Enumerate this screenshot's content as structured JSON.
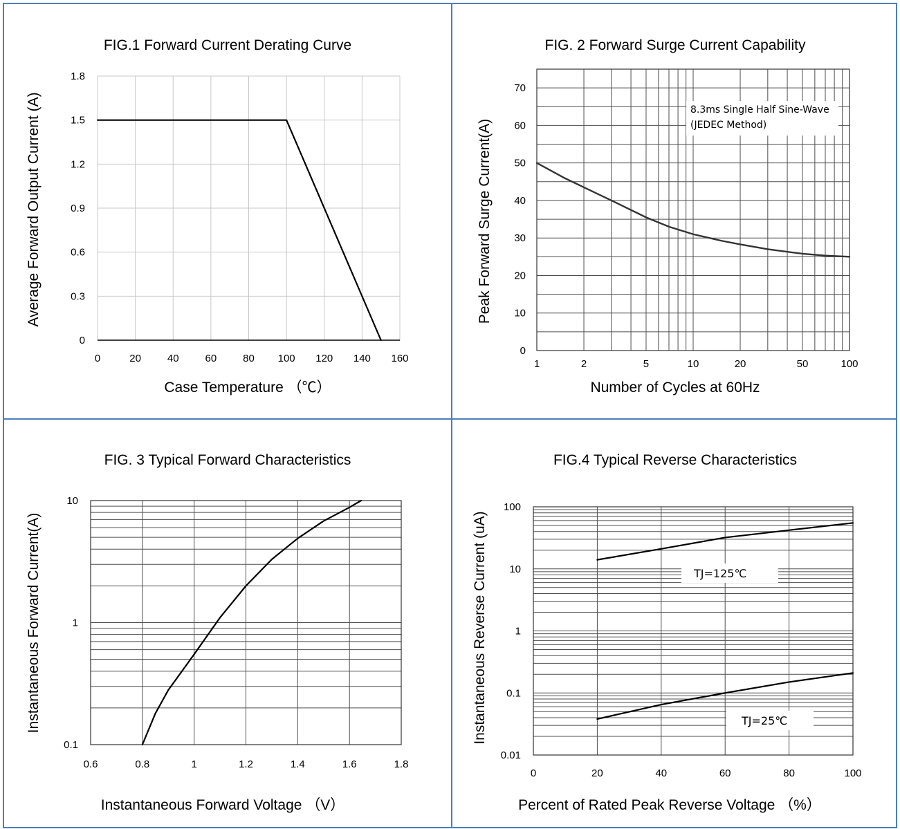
{
  "chart_data": [
    {
      "id": "fig1",
      "type": "line",
      "title": "FIG.1 Forward Current Derating Curve",
      "xlabel": "Case Temperature （℃）",
      "ylabel": "Average Forward Output Current (A)",
      "xlim": [
        0,
        160
      ],
      "ylim": [
        0,
        1.8
      ],
      "x_scale": "linear",
      "y_scale": "linear",
      "grid": true,
      "x_ticks": [
        0,
        20,
        40,
        60,
        80,
        100,
        120,
        140,
        160
      ],
      "x_tick_labels": [
        "0",
        "20",
        "40",
        "60",
        "80",
        "100",
        "120",
        "140",
        "160"
      ],
      "y_ticks": [
        0,
        0.3,
        0.6,
        0.9,
        1.2,
        1.5,
        1.8
      ],
      "y_tick_labels": [
        "0",
        "0.3",
        "0.6",
        "0.9",
        "1.2",
        "1.5",
        "1.8"
      ],
      "series": [
        {
          "x": [
            0,
            100,
            150
          ],
          "y": [
            1.5,
            1.5,
            0
          ]
        }
      ]
    },
    {
      "id": "fig2",
      "type": "line",
      "title": "FIG. 2 Forward Surge Current Capability",
      "xlabel": "Number of Cycles at 60Hz",
      "ylabel": "Peak Forward Surge Current(A)",
      "xlim": [
        1,
        100
      ],
      "ylim": [
        0,
        75
      ],
      "x_scale": "log",
      "y_scale": "linear",
      "grid": true,
      "x_ticks": [
        1,
        2,
        5,
        10,
        20,
        50,
        100
      ],
      "x_tick_labels": [
        "1",
        "2",
        "5",
        "10",
        "20",
        "50",
        "100"
      ],
      "y_ticks": [
        0,
        10,
        20,
        30,
        40,
        50,
        60,
        70
      ],
      "y_tick_labels": [
        "0",
        "10",
        "20",
        "30",
        "40",
        "50",
        "60",
        "70"
      ],
      "annotations": [
        "8.3ms Single Half Sine-Wave",
        "(JEDEC Method)"
      ],
      "series": [
        {
          "x": [
            1,
            1.5,
            2,
            3,
            5,
            7,
            10,
            15,
            20,
            30,
            50,
            70,
            100
          ],
          "y": [
            50,
            46,
            43.5,
            40,
            35.5,
            33,
            31,
            29.3,
            28.3,
            27,
            25.8,
            25.3,
            25
          ]
        }
      ]
    },
    {
      "id": "fig3",
      "type": "line",
      "title": "FIG. 3 Typical Forward Characteristics",
      "xlabel": "Instantaneous Forward Voltage （V）",
      "ylabel": "Instantaneous Forward Current(A)",
      "xlim": [
        0.6,
        1.8
      ],
      "ylim": [
        0.1,
        10
      ],
      "x_scale": "linear",
      "y_scale": "log",
      "grid": true,
      "x_ticks": [
        0.6,
        0.8,
        1.0,
        1.2,
        1.4,
        1.6,
        1.8
      ],
      "x_tick_labels": [
        "0.6",
        "0.8",
        "1",
        "1.2",
        "1.4",
        "1.6",
        "1.8"
      ],
      "y_ticks": [
        0.1,
        1,
        10
      ],
      "y_tick_labels": [
        "0.1",
        "1",
        "10"
      ],
      "series": [
        {
          "x": [
            0.8,
            0.85,
            0.9,
            1.0,
            1.1,
            1.2,
            1.3,
            1.4,
            1.5,
            1.6,
            1.645
          ],
          "y": [
            0.1,
            0.18,
            0.28,
            0.55,
            1.1,
            2.0,
            3.3,
            4.9,
            6.8,
            8.8,
            10
          ]
        }
      ]
    },
    {
      "id": "fig4",
      "type": "line",
      "title": "FIG.4 Typical Reverse Characteristics",
      "xlabel": "Percent of Rated Peak Reverse Voltage （%）",
      "ylabel": "Instantaneous Reverse Current (uA)",
      "xlim": [
        0,
        100
      ],
      "ylim": [
        0.01,
        100
      ],
      "x_scale": "linear",
      "y_scale": "log",
      "grid": true,
      "x_ticks": [
        0,
        20,
        40,
        60,
        80,
        100
      ],
      "x_tick_labels": [
        "0",
        "20",
        "40",
        "60",
        "80",
        "100"
      ],
      "y_ticks": [
        0.01,
        0.1,
        1,
        10,
        100
      ],
      "y_tick_labels": [
        "0.01",
        "0.1",
        "1",
        "10",
        "100"
      ],
      "series": [
        {
          "name": "TJ=125℃",
          "x": [
            20,
            40,
            60,
            80,
            100
          ],
          "y": [
            14,
            21,
            32,
            42,
            55
          ]
        },
        {
          "name": "TJ=25℃",
          "x": [
            20,
            40,
            60,
            80,
            100
          ],
          "y": [
            0.038,
            0.065,
            0.1,
            0.15,
            0.21
          ]
        }
      ]
    }
  ]
}
